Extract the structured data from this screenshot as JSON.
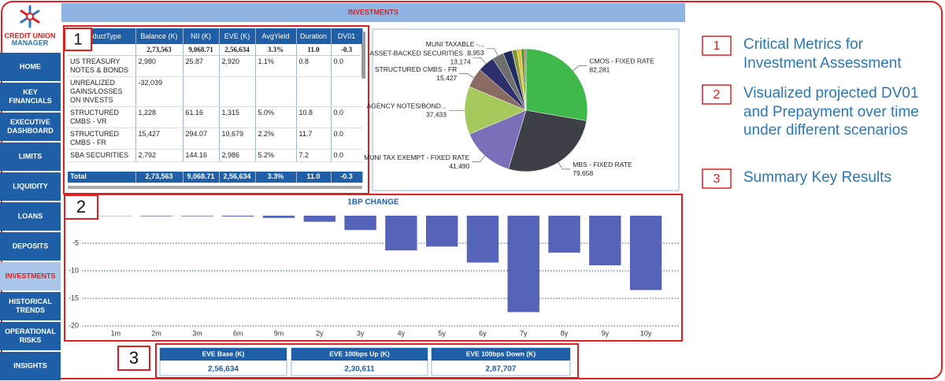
{
  "sidebar": {
    "logo": {
      "line1": "CREDIT UNION",
      "line2": "MANAGER"
    },
    "items": [
      "HOME",
      "KEY FINANCIALS",
      "EXECUTIVE DASHBOARD",
      "LIMITS",
      "LIQUIDITY",
      "LOANS",
      "DEPOSITS",
      "INVESTMENTS",
      "HISTORICAL TRENDS",
      "OPERATIONAL RISKS",
      "INSIGHTS"
    ],
    "active": 7
  },
  "header": {
    "title": "INVESTMENTS"
  },
  "table": {
    "columns": [
      "ProductType",
      "Balance (K)",
      "NII (K)",
      "EVE (K)",
      "AvgYield",
      "Duration",
      "DV01"
    ],
    "first_row": [
      null,
      "2,73,563",
      "9,068.71",
      "2,56,634",
      "3.3%",
      "11.0",
      "-0.3"
    ],
    "rows": [
      [
        "US TREASURY NOTES & BONDS",
        "2,980",
        "25.87",
        "2,920",
        "1.1%",
        "0.8",
        "0.0"
      ],
      [
        "UNREALIZED GAINS/LOSSES ON INVESTS",
        "-32,039",
        null,
        null,
        null,
        null,
        null
      ],
      [
        "STRUCTURED CMBS - VR",
        "1,228",
        "61.16",
        "1,315",
        "5.0%",
        "10.8",
        "0.0"
      ],
      [
        "STRUCTURED CMBS - FR",
        "15,427",
        "294.07",
        "10,679",
        "2.2%",
        "11.7",
        "0.0"
      ],
      [
        "SBA SECURITIES",
        "2,792",
        "144.16",
        "2,986",
        "5.2%",
        "7.2",
        "0.0"
      ]
    ],
    "total": [
      "Total",
      "2,73,563",
      "9,068.71",
      "2,56,634",
      "3.3%",
      "11.0",
      "-0.3"
    ]
  },
  "pie": {
    "type": "pie",
    "categories": [
      "CMOS - FIXED RATE",
      "MBS - FIXED RATE",
      "MUNI TAX EXEMPT - FIXED RATE",
      "AGENCY NOTES/BOND...",
      "STRUCTURED CMBS - FR",
      "ASSET-BACKED SECURITIES ...",
      "MUNI TAXABLE -...",
      null,
      null,
      null,
      null,
      null
    ],
    "values": [
      82281,
      79658,
      41490,
      37433,
      15427,
      13174,
      8953,
      7000,
      4000,
      2980,
      2792,
      1228
    ],
    "value_labels": [
      "82,281",
      "79,658",
      "41,490",
      "37,433",
      "15,427",
      "13,174",
      "8,953",
      null,
      null,
      null,
      null,
      null
    ],
    "colors": [
      "#3fba4a",
      "#3e4047",
      "#7c6fb9",
      "#a6c95b",
      "#8a6b62",
      "#2c2f6b",
      "#6e6e6e",
      "#1d2b5e",
      "#8a9a3a",
      "#e3c23a",
      "#5a9a3a",
      "#c04a4a"
    ]
  },
  "bar": {
    "type": "bar",
    "title": "1BP CHANGE",
    "categories": [
      "1m",
      "2m",
      "3m",
      "6m",
      "9m",
      "2y",
      "3y",
      "4y",
      "5y",
      "6y",
      "7y",
      "8y",
      "9y",
      "10y"
    ],
    "values": [
      -0.05,
      -0.1,
      -0.1,
      -0.15,
      -0.4,
      -1.1,
      -2.6,
      -6.3,
      -5.6,
      -8.5,
      -17.5,
      -6.7,
      -9.0,
      -13.5
    ],
    "color": "#5563b8",
    "ylim": [
      -20,
      1
    ],
    "yticks": [
      -20,
      -15,
      -10,
      -5
    ],
    "grid": true
  },
  "kpis": [
    {
      "label": "EVE Base (K)",
      "value": "2,56,634"
    },
    {
      "label": "EVE 100bps Up (K)",
      "value": "2,30,611"
    },
    {
      "label": "EVE 100bps Down (K)",
      "value": "2,87,707"
    }
  ],
  "annotations": [
    {
      "number": "1",
      "text": "Critical Metrics for Investment Assessment"
    },
    {
      "number": "2",
      "text": "Visualized projected DV01 and Prepayment over time under different scenarios"
    },
    {
      "number": "3",
      "text": "Summary Key Results"
    }
  ]
}
